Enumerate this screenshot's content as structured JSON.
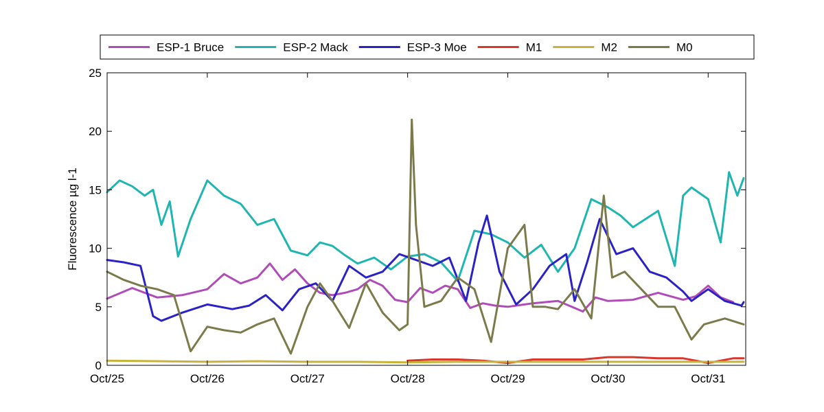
{
  "chart_data": {
    "type": "line",
    "title": "",
    "xlabel": "",
    "ylabel": "Fluorescence µg l-1",
    "xlim": [
      "2013-10-25",
      "2013-10-31T09:00"
    ],
    "ylim": [
      0,
      25
    ],
    "yticks": [
      0,
      5,
      10,
      15,
      20,
      25
    ],
    "xticks": [
      {
        "date": "2013-10-25",
        "label": "Oct/25"
      },
      {
        "date": "2013-10-26",
        "label": "Oct/26"
      },
      {
        "date": "2013-10-27",
        "label": "Oct/27"
      },
      {
        "date": "2013-10-28",
        "label": "Oct/28"
      },
      {
        "date": "2013-10-29",
        "label": "Oct/29"
      },
      {
        "date": "2013-10-30",
        "label": "Oct/30"
      },
      {
        "date": "2013-10-31",
        "label": "Oct/31"
      }
    ],
    "grid": false,
    "legend": "top, outside, horizontal",
    "series": [
      {
        "name": "ESP-1 Bruce",
        "color": "#b04cb8",
        "x": [
          "2013-10-25T00:00",
          "2013-10-25T06:00",
          "2013-10-25T12:00",
          "2013-10-25T18:00",
          "2013-10-26T00:00",
          "2013-10-26T04:00",
          "2013-10-26T08:00",
          "2013-10-26T12:00",
          "2013-10-26T15:00",
          "2013-10-26T18:00",
          "2013-10-26T21:00",
          "2013-10-27T00:00",
          "2013-10-27T03:00",
          "2013-10-27T06:00",
          "2013-10-27T09:00",
          "2013-10-27T12:00",
          "2013-10-27T15:00",
          "2013-10-27T18:00",
          "2013-10-27T21:00",
          "2013-10-28T00:00",
          "2013-10-28T03:00",
          "2013-10-28T06:00",
          "2013-10-28T09:00",
          "2013-10-28T12:00",
          "2013-10-28T15:00",
          "2013-10-28T18:00",
          "2013-10-28T21:00",
          "2013-10-29T00:00",
          "2013-10-29T06:00",
          "2013-10-29T12:00",
          "2013-10-29T18:00",
          "2013-10-29T21:00",
          "2013-10-30T00:00",
          "2013-10-30T06:00",
          "2013-10-30T12:00",
          "2013-10-30T18:00",
          "2013-10-30T21:00",
          "2013-10-31T00:00",
          "2013-10-31T03:00",
          "2013-10-31T06:00"
        ],
        "y": [
          5.7,
          6.6,
          5.8,
          6.0,
          6.5,
          7.8,
          7.0,
          7.5,
          8.7,
          7.3,
          8.2,
          7.0,
          6.2,
          6.0,
          6.2,
          6.5,
          7.3,
          6.8,
          5.6,
          5.4,
          6.6,
          6.2,
          6.8,
          6.5,
          4.9,
          5.3,
          5.1,
          5.0,
          5.3,
          5.5,
          4.6,
          5.8,
          5.5,
          5.6,
          6.2,
          5.6,
          5.9,
          6.8,
          5.8,
          5.4
        ]
      },
      {
        "name": "ESP-2 Mack",
        "color": "#1fb5b0",
        "x": [
          "2013-10-25T00:00",
          "2013-10-25T03:00",
          "2013-10-25T06:00",
          "2013-10-25T09:00",
          "2013-10-25T11:00",
          "2013-10-25T13:00",
          "2013-10-25T15:00",
          "2013-10-25T17:00",
          "2013-10-25T20:00",
          "2013-10-26T00:00",
          "2013-10-26T04:00",
          "2013-10-26T08:00",
          "2013-10-26T12:00",
          "2013-10-26T16:00",
          "2013-10-26T20:00",
          "2013-10-27T00:00",
          "2013-10-27T03:00",
          "2013-10-27T06:00",
          "2013-10-27T09:00",
          "2013-10-27T12:00",
          "2013-10-27T16:00",
          "2013-10-27T20:00",
          "2013-10-28T00:00",
          "2013-10-28T04:00",
          "2013-10-28T08:00",
          "2013-10-28T12:00",
          "2013-10-28T16:00",
          "2013-10-28T20:00",
          "2013-10-29T00:00",
          "2013-10-29T04:00",
          "2013-10-29T08:00",
          "2013-10-29T12:00",
          "2013-10-29T16:00",
          "2013-10-29T20:00",
          "2013-10-30T00:00",
          "2013-10-30T03:00",
          "2013-10-30T06:00",
          "2013-10-30T09:00",
          "2013-10-30T12:00",
          "2013-10-30T16:00",
          "2013-10-30T18:00",
          "2013-10-30T20:00",
          "2013-10-31T00:00",
          "2013-10-31T03:00",
          "2013-10-31T05:00",
          "2013-10-31T07:00",
          "2013-10-31T08:30"
        ],
        "y": [
          14.8,
          15.8,
          15.3,
          14.5,
          15.0,
          12.0,
          14.0,
          9.3,
          12.5,
          15.8,
          14.5,
          13.8,
          12.0,
          12.5,
          9.8,
          9.4,
          10.5,
          10.2,
          9.4,
          8.7,
          9.2,
          8.2,
          9.3,
          9.5,
          8.8,
          7.2,
          11.5,
          11.2,
          10.5,
          9.2,
          10.3,
          8.0,
          10.0,
          14.2,
          13.5,
          12.8,
          11.8,
          12.5,
          13.2,
          8.5,
          14.5,
          15.2,
          14.2,
          10.5,
          16.5,
          14.5,
          16.0
        ]
      },
      {
        "name": "ESP-3 Moe",
        "color": "#2b22c6",
        "x": [
          "2013-10-25T00:00",
          "2013-10-25T04:00",
          "2013-10-25T08:00",
          "2013-10-25T11:00",
          "2013-10-25T13:00",
          "2013-10-25T18:00",
          "2013-10-26T00:00",
          "2013-10-26T06:00",
          "2013-10-26T10:00",
          "2013-10-26T14:00",
          "2013-10-26T18:00",
          "2013-10-26T22:00",
          "2013-10-27T02:00",
          "2013-10-27T06:00",
          "2013-10-27T10:00",
          "2013-10-27T14:00",
          "2013-10-27T18:00",
          "2013-10-27T22:00",
          "2013-10-28T02:00",
          "2013-10-28T06:00",
          "2013-10-28T10:00",
          "2013-10-28T14:00",
          "2013-10-28T17:00",
          "2013-10-28T19:00",
          "2013-10-28T22:00",
          "2013-10-29T02:00",
          "2013-10-29T06:00",
          "2013-10-29T10:00",
          "2013-10-29T14:00",
          "2013-10-29T16:00",
          "2013-10-29T19:00",
          "2013-10-29T22:00",
          "2013-10-30T02:00",
          "2013-10-30T06:00",
          "2013-10-30T10:00",
          "2013-10-30T14:00",
          "2013-10-30T18:00",
          "2013-10-30T20:00",
          "2013-10-31T00:00",
          "2013-10-31T04:00",
          "2013-10-31T08:00",
          "2013-10-31T08:30"
        ],
        "y": [
          9.0,
          8.8,
          8.5,
          4.2,
          3.8,
          4.5,
          5.2,
          4.8,
          5.1,
          6.0,
          4.7,
          6.5,
          7.0,
          5.5,
          8.5,
          7.5,
          8.0,
          9.5,
          9.0,
          8.5,
          9.2,
          5.5,
          10.5,
          12.8,
          8.0,
          5.2,
          6.5,
          8.5,
          9.5,
          5.5,
          8.8,
          12.5,
          9.5,
          10.0,
          8.0,
          7.5,
          6.3,
          5.5,
          6.5,
          5.5,
          5.1,
          5.4
        ]
      },
      {
        "name": "M1",
        "color": "#d8372a",
        "x": [
          "2013-10-28T00:00",
          "2013-10-28T06:00",
          "2013-10-28T12:00",
          "2013-10-28T18:00",
          "2013-10-29T00:00",
          "2013-10-29T06:00",
          "2013-10-29T12:00",
          "2013-10-29T18:00",
          "2013-10-30T00:00",
          "2013-10-30T06:00",
          "2013-10-30T12:00",
          "2013-10-30T18:00",
          "2013-10-31T00:00",
          "2013-10-31T06:00",
          "2013-10-31T08:30"
        ],
        "y": [
          0.4,
          0.5,
          0.5,
          0.4,
          0.2,
          0.5,
          0.5,
          0.5,
          0.7,
          0.7,
          0.6,
          0.6,
          0.2,
          0.6,
          0.6
        ]
      },
      {
        "name": "M2",
        "color": "#c8b43a",
        "x": [
          "2013-10-25T00:00",
          "2013-10-25T12:00",
          "2013-10-26T00:00",
          "2013-10-26T12:00",
          "2013-10-27T00:00",
          "2013-10-27T12:00",
          "2013-10-28T00:00",
          "2013-10-28T12:00",
          "2013-10-29T00:00",
          "2013-10-29T12:00",
          "2013-10-30T00:00",
          "2013-10-30T12:00",
          "2013-10-31T00:00",
          "2013-10-31T08:30"
        ],
        "y": [
          0.4,
          0.35,
          0.3,
          0.35,
          0.3,
          0.3,
          0.25,
          0.3,
          0.3,
          0.3,
          0.3,
          0.3,
          0.3,
          0.3
        ]
      },
      {
        "name": "M0",
        "color": "#7b7a4a",
        "x": [
          "2013-10-25T00:00",
          "2013-10-25T04:00",
          "2013-10-25T08:00",
          "2013-10-25T12:00",
          "2013-10-25T16:00",
          "2013-10-25T20:00",
          "2013-10-26T00:00",
          "2013-10-26T04:00",
          "2013-10-26T08:00",
          "2013-10-26T12:00",
          "2013-10-26T16:00",
          "2013-10-26T20:00",
          "2013-10-27T00:00",
          "2013-10-27T03:00",
          "2013-10-27T06:00",
          "2013-10-27T10:00",
          "2013-10-27T14:00",
          "2013-10-27T18:00",
          "2013-10-27T22:00",
          "2013-10-28T00:00",
          "2013-10-28T01:00",
          "2013-10-28T02:00",
          "2013-10-28T04:00",
          "2013-10-28T08:00",
          "2013-10-28T12:00",
          "2013-10-28T16:00",
          "2013-10-28T20:00",
          "2013-10-29T00:00",
          "2013-10-29T04:00",
          "2013-10-29T06:00",
          "2013-10-29T09:00",
          "2013-10-29T12:00",
          "2013-10-29T16:00",
          "2013-10-29T20:00",
          "2013-10-29T23:00",
          "2013-10-30T01:00",
          "2013-10-30T04:00",
          "2013-10-30T08:00",
          "2013-10-30T12:00",
          "2013-10-30T16:00",
          "2013-10-30T20:00",
          "2013-10-30T23:00",
          "2013-10-31T04:00",
          "2013-10-31T08:30"
        ],
        "y": [
          8.0,
          7.3,
          6.8,
          6.5,
          6.0,
          1.2,
          3.3,
          3.0,
          2.8,
          3.5,
          4.0,
          1.0,
          5.0,
          7.0,
          5.5,
          3.2,
          7.0,
          4.5,
          3.0,
          3.5,
          21.0,
          12.0,
          5.0,
          5.5,
          7.5,
          6.5,
          2.0,
          10.0,
          12.0,
          5.0,
          5.0,
          4.8,
          6.5,
          4.0,
          14.5,
          7.5,
          8.0,
          6.5,
          5.0,
          5.0,
          2.2,
          3.5,
          4.0,
          3.5
        ]
      }
    ]
  }
}
